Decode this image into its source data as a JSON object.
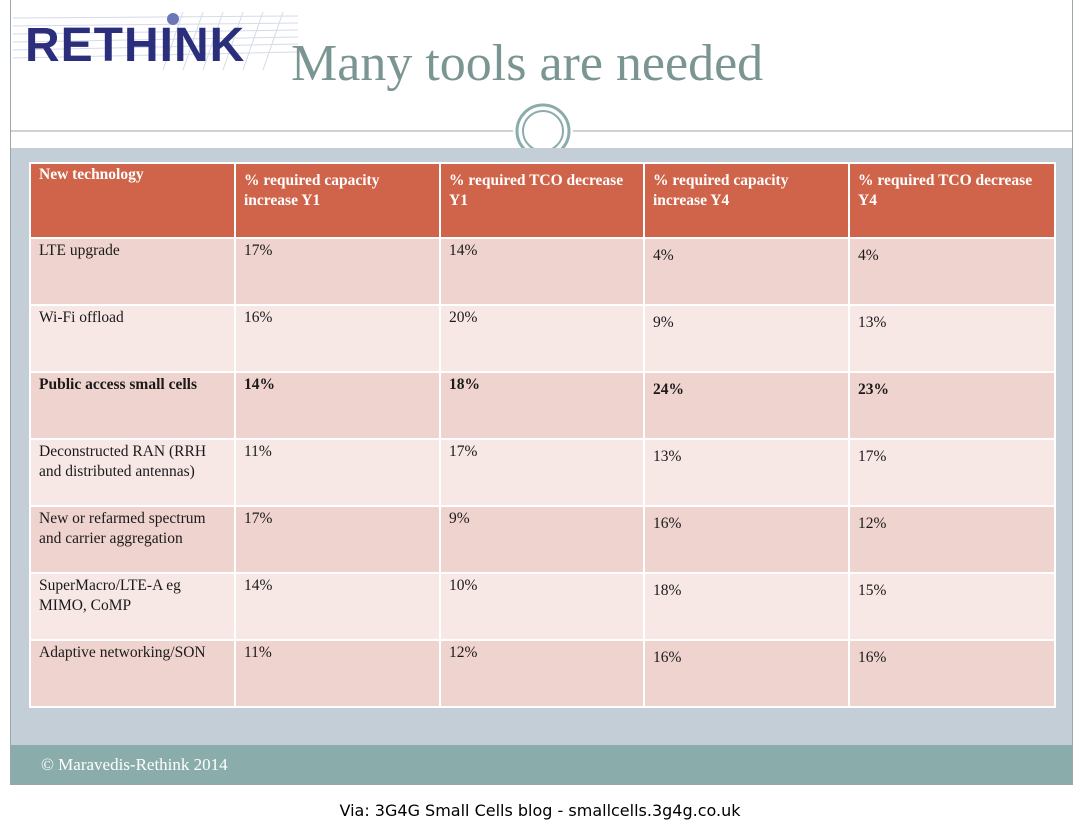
{
  "logo": {
    "text": "RETHINK"
  },
  "slide": {
    "title": "Many tools are needed"
  },
  "table": {
    "headers": [
      "New technology",
      "% required capacity increase Y1",
      "% required TCO decrease Y1",
      "% required capacity increase Y4",
      "% required TCO decrease Y4"
    ],
    "rows": [
      {
        "technology": "LTE upgrade",
        "cap_y1": "17%",
        "tco_y1": "14%",
        "cap_y4": "4%",
        "tco_y4": "4%"
      },
      {
        "technology": "Wi-Fi offload",
        "cap_y1": "16%",
        "tco_y1": "20%",
        "cap_y4": "9%",
        "tco_y4": "13%"
      },
      {
        "technology": "Public access small cells",
        "cap_y1": "14%",
        "tco_y1": "18%",
        "cap_y4": "24%",
        "tco_y4": "23%"
      },
      {
        "technology": "Deconstructed RAN (RRH and distributed antennas)",
        "cap_y1": "11%",
        "tco_y1": "17%",
        "cap_y4": "13%",
        "tco_y4": "17%"
      },
      {
        "technology": "New or refarmed spectrum and carrier aggregation",
        "cap_y1": "17%",
        "tco_y1": "9%",
        "cap_y4": "16%",
        "tco_y4": "12%"
      },
      {
        "technology": "SuperMacro/LTE-A eg MIMO, CoMP",
        "cap_y1": "14%",
        "tco_y1": "10%",
        "cap_y4": "18%",
        "tco_y4": "15%"
      },
      {
        "technology": "Adaptive networking/SON",
        "cap_y1": "11%",
        "tco_y1": "12%",
        "cap_y4": "16%",
        "tco_y4": "16%"
      }
    ]
  },
  "footer": {
    "copyright": "© Maravedis-Rethink 2014"
  },
  "caption": {
    "via": "Via: 3G4G Small Cells blog - smallcells.3g4g.co.uk"
  }
}
